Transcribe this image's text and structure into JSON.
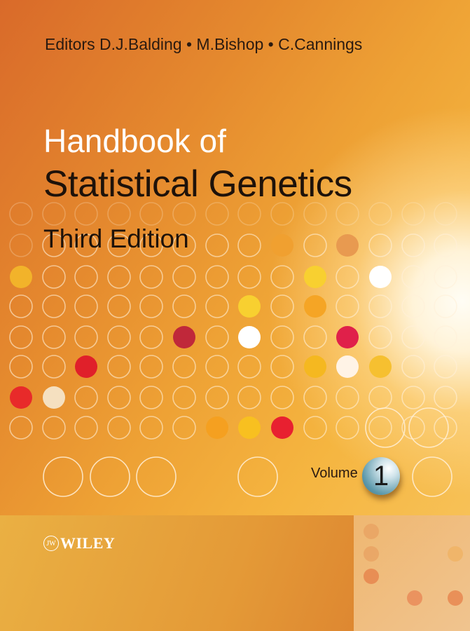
{
  "cover": {
    "editors": "Editors D.J.Balding • M.Bishop • C.Cannings",
    "title_line1": "Handbook of",
    "title_line2": "Statistical Genetics",
    "edition": "Third Edition",
    "volume_label": "Volume",
    "volume_number": "1",
    "publisher": "WILEY",
    "publisher_mark": "JW"
  },
  "colors": {
    "background": "#e58a2e",
    "accent_red": "#e0202a",
    "accent_yellow": "#f8d030",
    "volume_ball": "#5d99ab"
  }
}
